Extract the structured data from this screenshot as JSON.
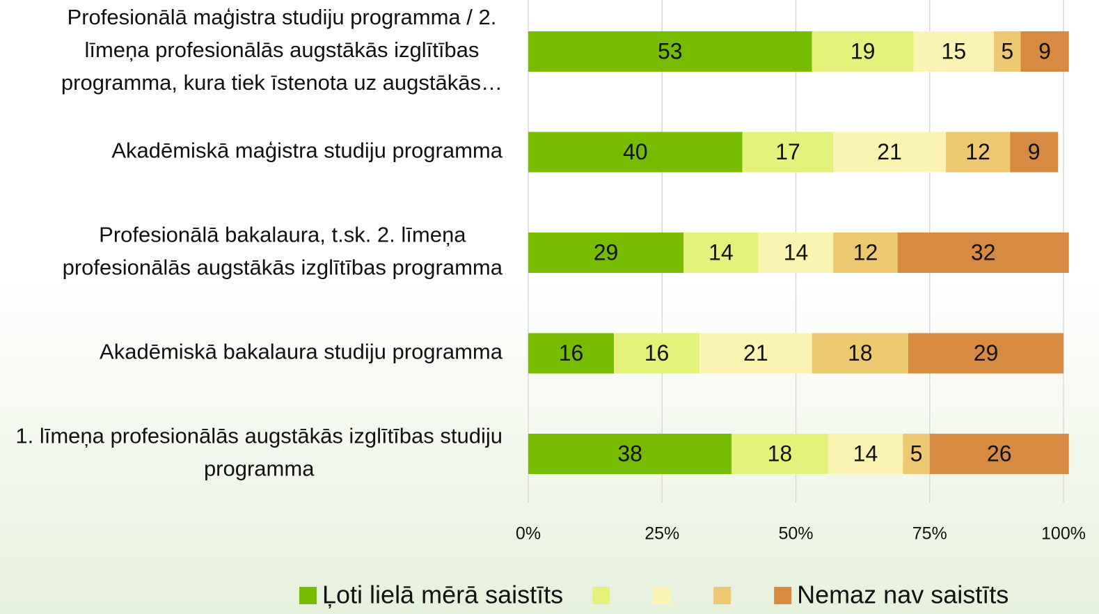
{
  "chart_data": {
    "type": "stacked_bar_horizontal",
    "categories": [
      "Profesionālā maģistra studiju programma / 2. līmeņa profesionālās augstākās izglītības programma, kura tiek īstenota uz augstākās…",
      "Akadēmiskā maģistra studiju programma",
      "Profesionālā bakalaura, t.sk. 2. līmeņa profesionālās augstākās izglītības programma",
      "Akadēmiskā bakalaura studiju programma",
      "1. līmeņa profesionālās augstākās izglītības studiju programma"
    ],
    "series": [
      {
        "name": "Ļoti lielā mērā saistīts",
        "color": "#77bc00",
        "values": [
          53,
          40,
          29,
          16,
          38
        ]
      },
      {
        "name": null,
        "color": "#e4f27c",
        "values": [
          19,
          17,
          14,
          16,
          18
        ]
      },
      {
        "name": null,
        "color": "#faf3b2",
        "values": [
          15,
          21,
          14,
          21,
          14
        ]
      },
      {
        "name": null,
        "color": "#ecc871",
        "values": [
          5,
          12,
          12,
          18,
          5
        ]
      },
      {
        "name": "Nemaz nav saistīts",
        "color": "#d78a42",
        "values": [
          9,
          9,
          32,
          29,
          26
        ]
      }
    ],
    "xlim": [
      0,
      100
    ],
    "xticks": [
      {
        "value": 0,
        "label": "0%"
      },
      {
        "value": 25,
        "label": "25%"
      },
      {
        "value": 50,
        "label": "50%"
      },
      {
        "value": 75,
        "label": "75%"
      },
      {
        "value": 100,
        "label": "100%"
      }
    ],
    "grid": true,
    "legend": "bottom"
  }
}
